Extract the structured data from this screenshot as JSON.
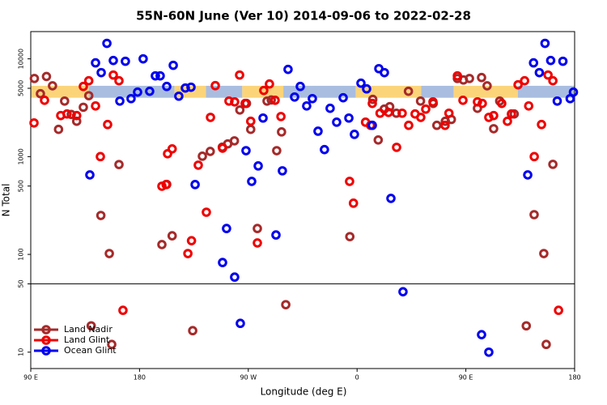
{
  "chart_data": {
    "type": "scatter",
    "title": "55N-60N June (Ver 10)   2014-09-06 to 2022-02-28",
    "xlabel": "Longitude (deg E)",
    "ylabel": "N Total",
    "xlim": [
      90,
      540
    ],
    "ylim": [
      6.8,
      19000
    ],
    "log_y": true,
    "xticks": [
      {
        "value": 90,
        "label": "90 E"
      },
      {
        "value": 180,
        "label": "180"
      },
      {
        "value": 270,
        "label": "90 W"
      },
      {
        "value": 360,
        "label": "0"
      },
      {
        "value": 450,
        "label": "90 E"
      },
      {
        "value": 540,
        "label": "180"
      }
    ],
    "yticks": [
      10,
      50,
      100,
      500,
      1000,
      5000,
      10000
    ],
    "hline": 50,
    "legend": "lower left",
    "band": {
      "ylim": [
        4000,
        5300
      ],
      "segments": [
        {
          "x": [
            90,
            138
          ],
          "color": "#fbd47a"
        },
        {
          "x": [
            138,
            209
          ],
          "color": "#a9bde0"
        },
        {
          "x": [
            209,
            235
          ],
          "color": "#fbd47a"
        },
        {
          "x": [
            235,
            265
          ],
          "color": "#a9bde0"
        },
        {
          "x": [
            265,
            299
          ],
          "color": "#fbd47a"
        },
        {
          "x": [
            299,
            359
          ],
          "color": "#a9bde0"
        },
        {
          "x": [
            359,
            413
          ],
          "color": "#fbd47a"
        },
        {
          "x": [
            413,
            440
          ],
          "color": "#a9bde0"
        },
        {
          "x": [
            440,
            493
          ],
          "color": "#fbd47a"
        },
        {
          "x": [
            493,
            540
          ],
          "color": "#a9bde0"
        }
      ]
    },
    "series": [
      {
        "name": "Land Nadir",
        "color": "#a52a2a",
        "x": [
          93,
          98,
          103,
          108,
          113,
          118,
          123.5,
          128,
          133.5,
          138,
          148,
          155,
          163,
          198.5,
          202.5,
          207,
          224,
          232,
          238.5,
          248.5,
          253,
          258.5,
          263,
          268.5,
          272,
          277.5,
          285.5,
          289,
          293.5,
          297.5,
          301,
          354,
          373,
          377.5,
          382.5,
          387,
          392.5,
          402.5,
          412.5,
          423,
          426,
          433,
          438,
          443,
          448,
          453,
          459.6,
          463,
          467.6,
          473,
          478,
          490,
          500,
          506.5,
          514.5,
          522,
          516.5,
          140,
          157
        ],
        "values": [
          6300,
          4400,
          6600,
          5300,
          1900,
          3700,
          2700,
          2300,
          3200,
          4200,
          250,
          102,
          830,
          126,
          520,
          155,
          16.6,
          1010,
          1130,
          1250,
          1350,
          1450,
          3000,
          3500,
          1900,
          184,
          3700,
          3800,
          1150,
          1790,
          30.6,
          152,
          3850,
          1480,
          3060,
          3240,
          2780,
          4660,
          3700,
          3500,
          2090,
          2300,
          2400,
          6300,
          6080,
          6300,
          3120,
          6440,
          5300,
          1930,
          3700,
          2730,
          18.6,
          255,
          102,
          834,
          12,
          18.6,
          12
        ]
      },
      {
        "name": "Land Glint",
        "color": "#ee0000",
        "x": [
          92.7,
          101.4,
          114.8,
          120,
          128,
          133.5,
          138,
          143.6,
          147.6,
          153.6,
          158.3,
          163,
          166.3,
          198.5,
          202,
          203.2,
          207,
          220,
          223,
          228.6,
          235.3,
          238.7,
          242.7,
          248.7,
          254,
          258.7,
          262.8,
          267.4,
          272,
          277.5,
          282.8,
          287.5,
          292.2,
          297,
          353.8,
          357,
          367,
          371.2,
          372.6,
          379,
          386,
          392.7,
          397.3,
          402.7,
          408,
          412.7,
          416.8,
          422.8,
          432.8,
          436,
          443,
          447.6,
          459.6,
          463.6,
          469,
          473,
          479.7,
          484.4,
          487.7,
          493.2,
          498.6,
          502,
          506.6,
          512.6,
          518,
          522,
          526.7
        ],
        "values": [
          2210,
          3770,
          2630,
          2730,
          2630,
          5220,
          5970,
          3300,
          1000,
          2130,
          6830,
          5970,
          26.8,
          498,
          518,
          1070,
          1200,
          102,
          138,
          818,
          270,
          2520,
          5320,
          1220,
          3700,
          3630,
          6830,
          3500,
          2300,
          131,
          4750,
          5530,
          3770,
          2570,
          558,
          334,
          2250,
          2090,
          3500,
          2780,
          2830,
          1245,
          2780,
          2090,
          2730,
          2520,
          3060,
          3630,
          2090,
          2780,
          6700,
          3770,
          3630,
          3500,
          2520,
          2630,
          3500,
          2300,
          2730,
          5430,
          5970,
          3300,
          1000,
          2130,
          6830,
          5970,
          26.8
        ]
      },
      {
        "name": "Ocean Glint",
        "color": "#0000ee",
        "x": [
          138.9,
          143.6,
          148.3,
          153,
          158.3,
          163.7,
          168.3,
          173,
          178.4,
          183,
          188.4,
          193.1,
          197.1,
          202.5,
          207.9,
          212.5,
          217.9,
          222.6,
          226,
          252,
          248.7,
          258.7,
          263.4,
          268.1,
          272.8,
          278.2,
          282.2,
          292.9,
          298.2,
          302.9,
          308.3,
          313,
          318.3,
          323,
          327.7,
          333,
          337.7,
          343.1,
          348.5,
          353.2,
          357.8,
          363.2,
          367.9,
          372.6,
          378,
          382.6,
          388,
          398,
          463,
          469,
          501.2,
          506,
          510.8,
          515.5,
          520.2,
          525.6,
          530.3,
          536.3,
          539
        ],
        "values": [
          650,
          9100,
          7230,
          14400,
          9620,
          3700,
          9450,
          3920,
          4570,
          10000,
          4660,
          6700,
          6700,
          5220,
          8590,
          4150,
          5030,
          5130,
          518,
          184,
          82.6,
          58.6,
          19.7,
          1150,
          558,
          803,
          2480,
          158,
          716,
          7800,
          4070,
          5220,
          3300,
          3920,
          1820,
          1180,
          3120,
          2250,
          4000,
          2480,
          1690,
          5640,
          4930,
          2090,
          7940,
          7230,
          374,
          41.5,
          15.1,
          10,
          650,
          9100,
          7230,
          14400,
          9620,
          3700,
          9450,
          3920,
          4570
        ]
      }
    ]
  }
}
